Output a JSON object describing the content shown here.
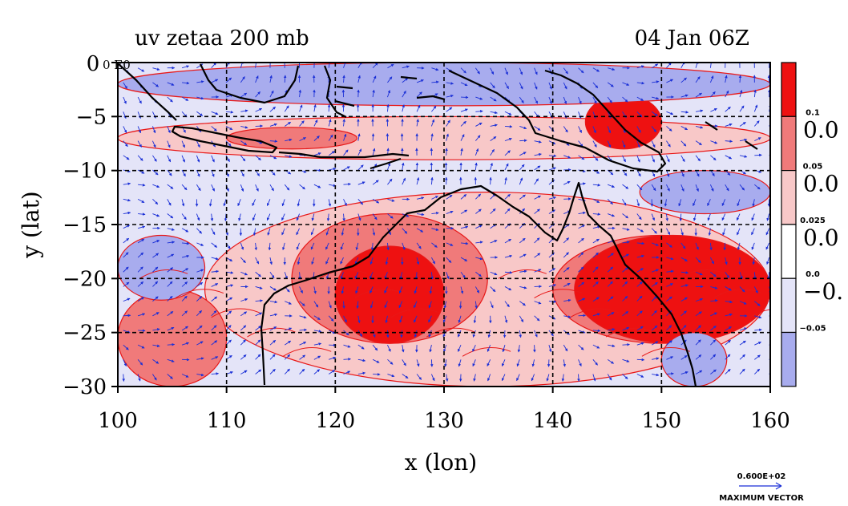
{
  "header": {
    "title_left": "uv zetaa 200 mb",
    "title_right": "04 Jan 06Z",
    "corner_label": "0 E0"
  },
  "axes": {
    "xlabel": "x (lon)",
    "ylabel": "y (lat)",
    "x_ticks": [
      "100",
      "110",
      "120",
      "130",
      "140",
      "150",
      "160"
    ],
    "x_values": [
      100,
      110,
      120,
      130,
      140,
      150,
      160
    ],
    "y_ticks": [
      "0",
      "−5",
      "−10",
      "−15",
      "−20",
      "−25",
      "−30"
    ],
    "y_values": [
      0,
      -5,
      -10,
      -15,
      -20,
      -25,
      -30
    ],
    "xlim": [
      100,
      160
    ],
    "ylim": [
      -30,
      0
    ],
    "grid": "dashed"
  },
  "colorbar": {
    "colors": [
      "#ee1111",
      "#f07a7a",
      "#f8c8c8",
      "#ffffff",
      "#e4e4f8",
      "#a8acee"
    ],
    "small_labels": [
      "0.1",
      "0.05",
      "0.025",
      "0.0",
      "−0.05"
    ],
    "big_labels": [
      "0.0",
      "0.0",
      "0.0",
      "−0."
    ]
  },
  "vector_key": {
    "value": "0.600E+02",
    "label": "MAXIMUM VECTOR"
  },
  "colors": {
    "strong_pos": "#ee1111",
    "mid_pos": "#f07a7a",
    "weak_pos": "#f8c8c8",
    "weak_neg": "#e4e4f8",
    "strong_neg": "#a8acee",
    "contour": "#e81818",
    "vector": "#1a2fd6",
    "coast": "#000000"
  },
  "chart_data": {
    "type": "heatmap",
    "title": "uv zetaa 200 mb",
    "subtitle": "04 Jan 06Z",
    "xlabel": "x (lon)",
    "ylabel": "y (lat)",
    "xlim": [
      100,
      160
    ],
    "ylim": [
      -30,
      0
    ],
    "contour_levels": [
      -0.05,
      0.0,
      0.025,
      0.05,
      0.1
    ],
    "regions": [
      {
        "level": 0.025,
        "lon": [
          100,
          160
        ],
        "lat": [
          -9,
          -5
        ]
      },
      {
        "level": 0.05,
        "lon": [
          110,
          122
        ],
        "lat": [
          -8,
          -6
        ]
      },
      {
        "level": 0.1,
        "lon": [
          143,
          150
        ],
        "lat": [
          -8,
          -3
        ]
      },
      {
        "level": -0.05,
        "lon": [
          100,
          160
        ],
        "lat": [
          -4,
          0
        ]
      },
      {
        "level": -0.05,
        "lon": [
          148,
          160
        ],
        "lat": [
          -14,
          -10
        ]
      },
      {
        "level": 0.025,
        "lon": [
          108,
          160
        ],
        "lat": [
          -30,
          -12
        ]
      },
      {
        "level": 0.05,
        "lon": [
          116,
          134
        ],
        "lat": [
          -26,
          -14
        ]
      },
      {
        "level": 0.1,
        "lon": [
          120,
          130
        ],
        "lat": [
          -26,
          -17
        ]
      },
      {
        "level": 0.05,
        "lon": [
          140,
          160
        ],
        "lat": [
          -26,
          -16
        ]
      },
      {
        "level": 0.1,
        "lon": [
          142,
          160
        ],
        "lat": [
          -26,
          -16
        ]
      },
      {
        "level": 0.05,
        "lon": [
          100,
          110
        ],
        "lat": [
          -30,
          -21
        ]
      },
      {
        "level": -0.05,
        "lon": [
          100,
          108
        ],
        "lat": [
          -22,
          -16
        ]
      },
      {
        "level": -0.05,
        "lon": [
          150,
          156
        ],
        "lat": [
          -30,
          -25
        ]
      }
    ],
    "vector_scale": "0.600E+02"
  }
}
